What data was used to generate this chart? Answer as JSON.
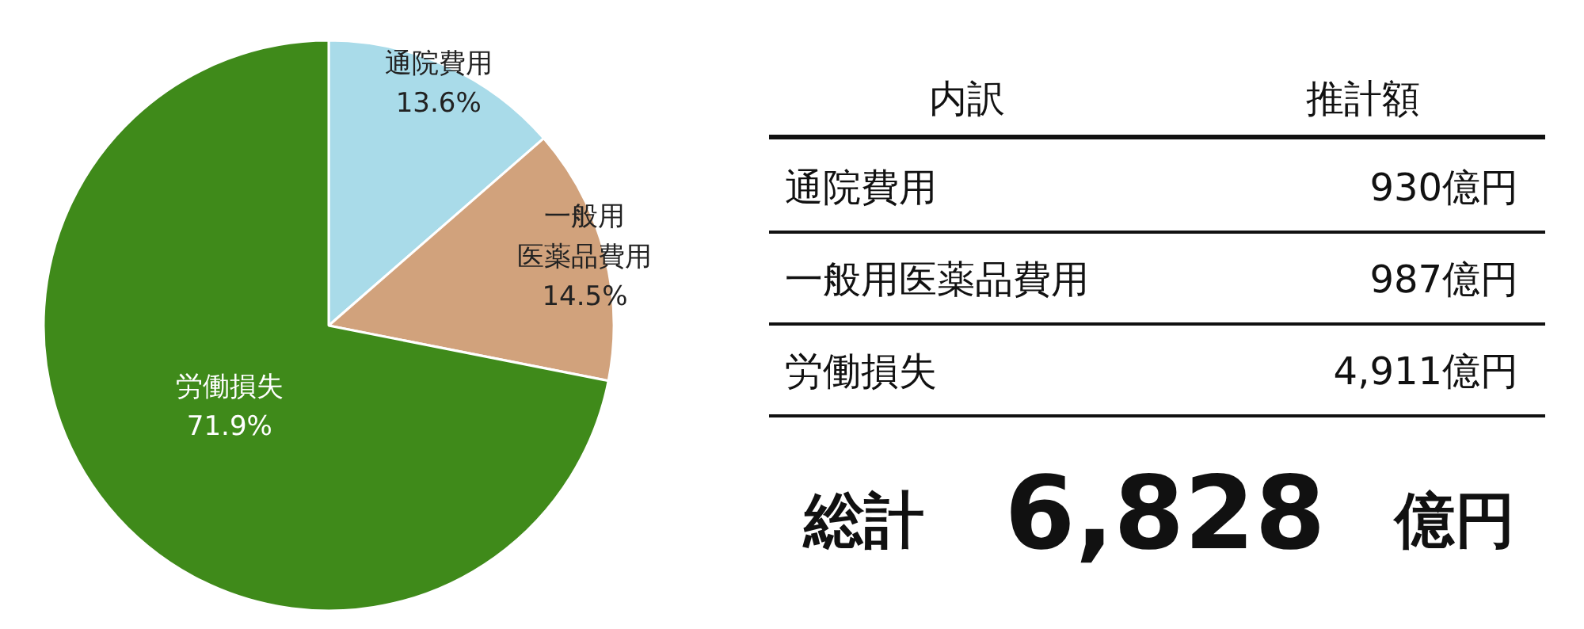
{
  "chart_data": [
    {
      "type": "pie",
      "categories": [
        "通院費用",
        "一般用医薬品費用",
        "労働損失"
      ],
      "values": [
        13.6,
        14.5,
        71.9
      ],
      "colors": [
        "#a9dbe9",
        "#d1a27c",
        "#3f8a1a"
      ],
      "value_labels": [
        "13.6%",
        "14.5%",
        "71.9%"
      ]
    },
    {
      "type": "other",
      "annotations": [
        "内訳",
        "推計額",
        "通院費用",
        "930億円",
        "一般用医薬品費用",
        "987億円",
        "労働損失",
        "4,911億円",
        "総計",
        "6,828",
        "億円"
      ]
    }
  ]
}
